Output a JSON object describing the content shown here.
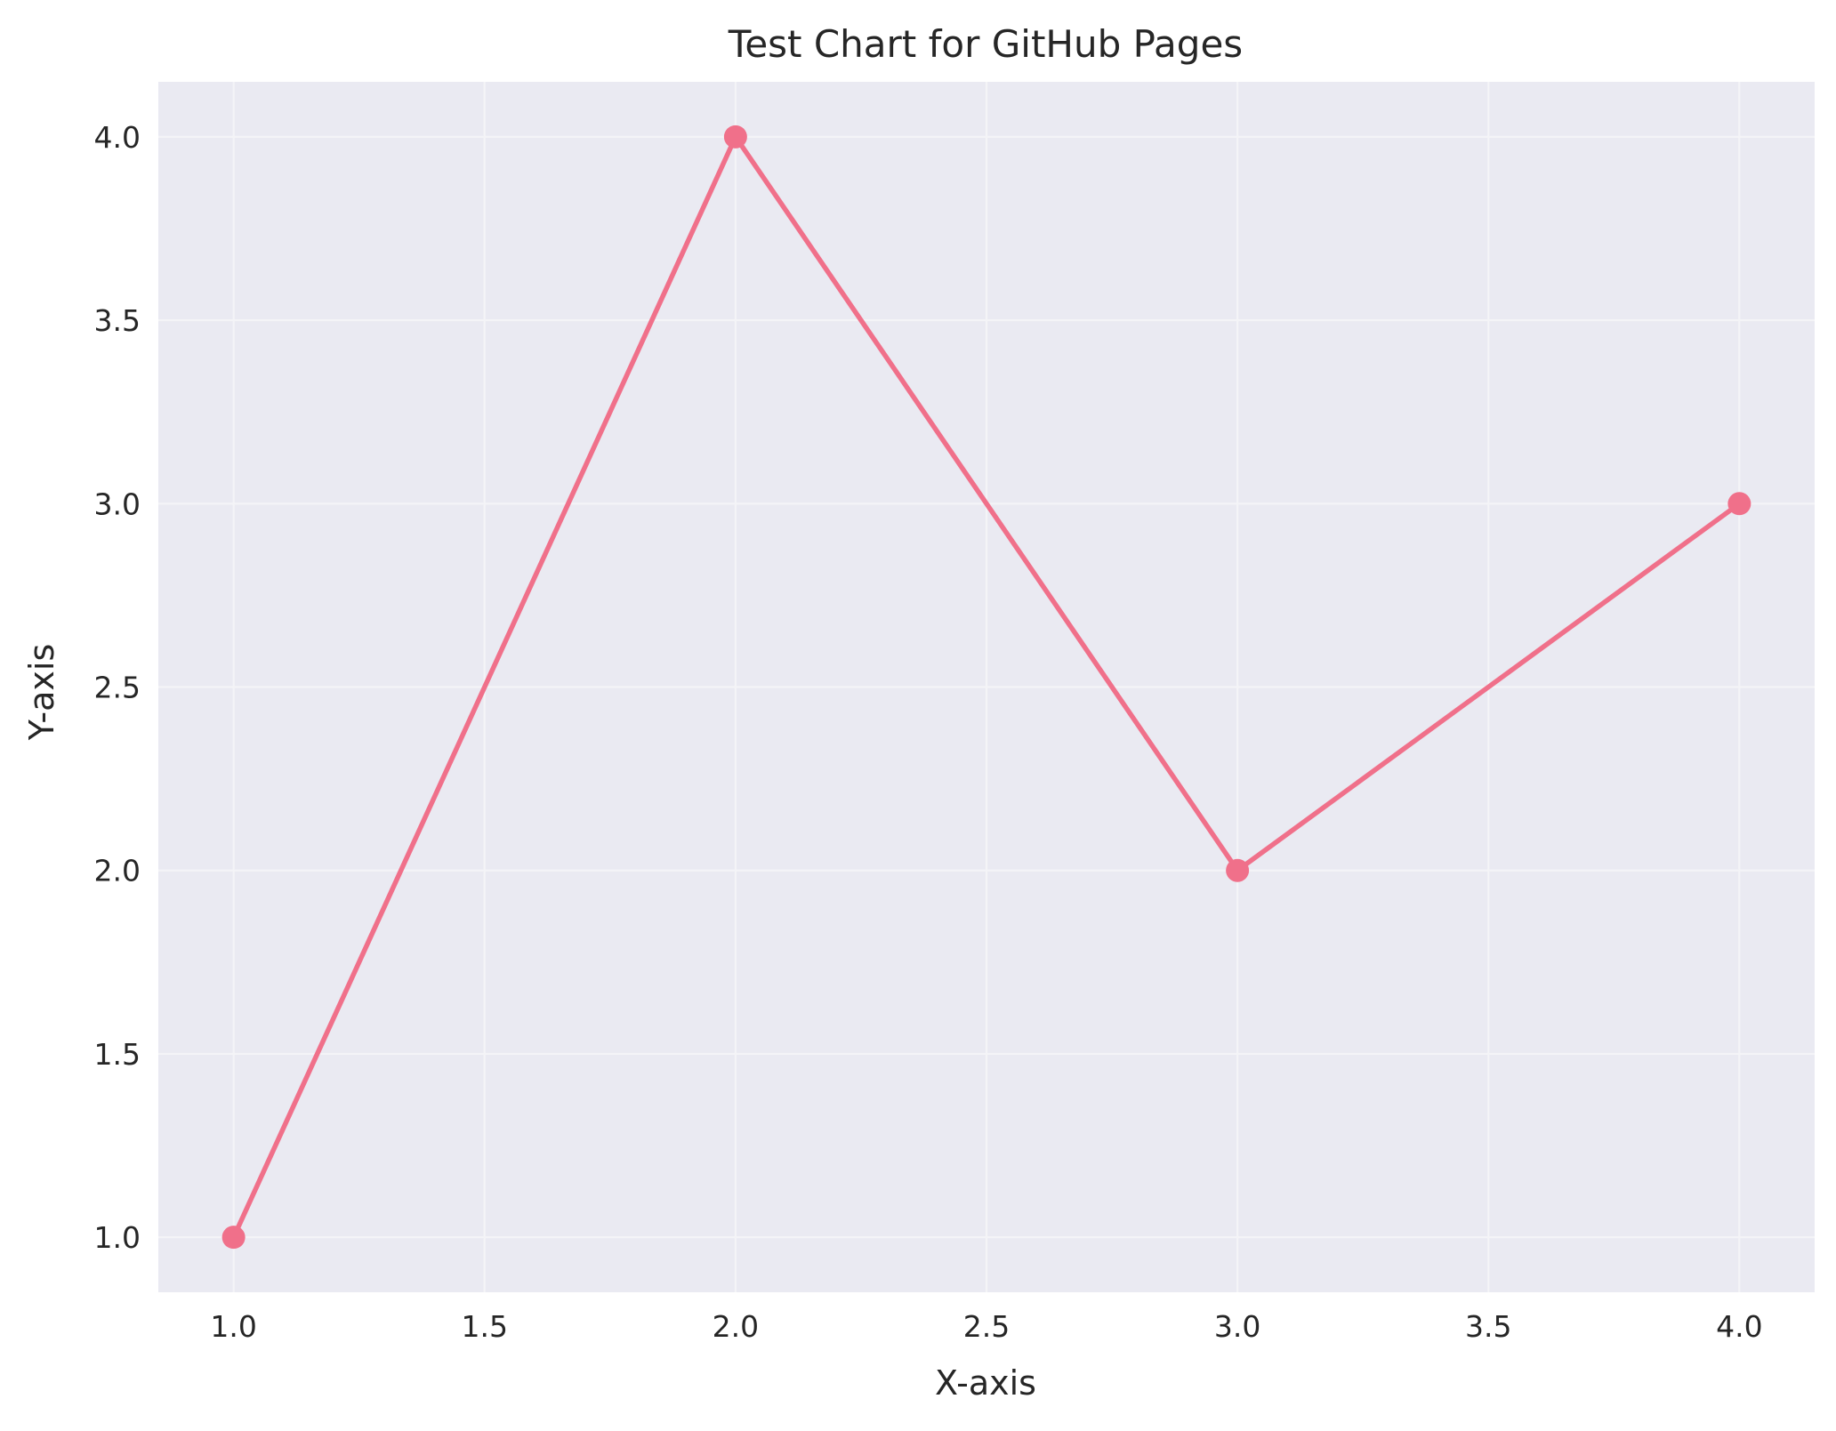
{
  "chart_data": {
    "type": "line",
    "title": "Test Chart for GitHub Pages",
    "xlabel": "X-axis",
    "ylabel": "Y-axis",
    "xlim": [
      0.85,
      4.15
    ],
    "ylim": [
      0.85,
      4.15
    ],
    "x_ticks": [
      1.0,
      1.5,
      2.0,
      2.5,
      3.0,
      3.5,
      4.0
    ],
    "y_ticks": [
      1.0,
      1.5,
      2.0,
      2.5,
      3.0,
      3.5,
      4.0
    ],
    "x_tick_labels": [
      "1.0",
      "1.5",
      "2.0",
      "2.5",
      "3.0",
      "3.5",
      "4.0"
    ],
    "y_tick_labels": [
      "1.0",
      "1.5",
      "2.0",
      "2.5",
      "3.0",
      "3.5",
      "4.0"
    ],
    "grid": true,
    "legend": "none",
    "series": [
      {
        "x": [
          1,
          2,
          3,
          4
        ],
        "y": [
          1,
          4,
          2,
          3
        ],
        "color": "#f0708a",
        "marker": "circle"
      }
    ],
    "colors": {
      "plot_background": "#eaeaf2",
      "grid": "#f4f4f7",
      "text": "#262626"
    }
  }
}
